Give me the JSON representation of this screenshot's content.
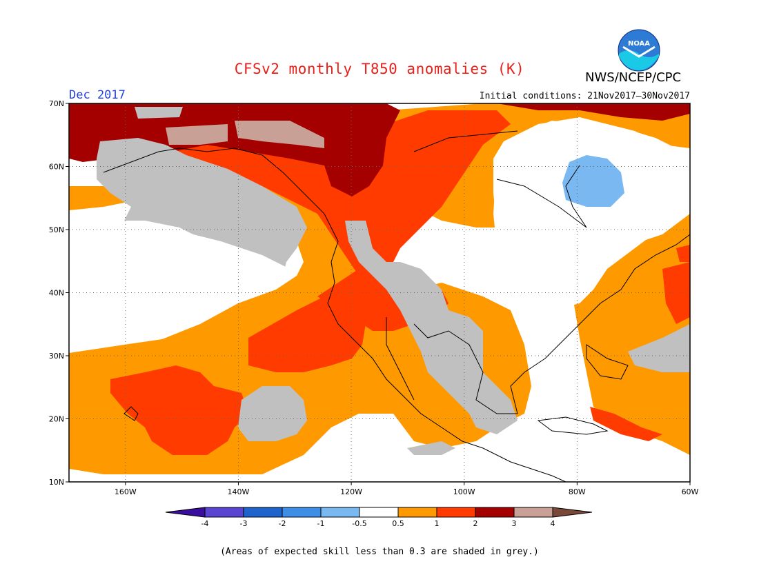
{
  "header": {
    "title": "CFSv2 monthly T850 anomalies (K)",
    "agency": "NWS/NCEP/CPC",
    "logo_text": "NOAA",
    "valid_month": "Dec 2017",
    "initial_conditions": "Initial conditions: 21Nov2017–30Nov2017"
  },
  "map": {
    "projection": "lat-lon",
    "lon_range": [
      -170,
      -60
    ],
    "lat_range": [
      10,
      70
    ],
    "lat_ticks": [
      "10N",
      "20N",
      "30N",
      "40N",
      "50N",
      "60N",
      "70N"
    ],
    "lat_tick_values": [
      10,
      20,
      30,
      40,
      50,
      60,
      70
    ],
    "lon_ticks": [
      "160W",
      "140W",
      "120W",
      "100W",
      "80W",
      "60W"
    ],
    "lon_tick_values": [
      -160,
      -140,
      -120,
      -100,
      -80,
      -60
    ],
    "grid": "dotted",
    "land_outline": "black"
  },
  "colorbar": {
    "ticks": [
      "-4",
      "-3",
      "-2",
      "-1",
      "-0.5",
      "0.5",
      "1",
      "2",
      "3",
      "4"
    ],
    "colors": [
      "#3a0fa0",
      "#5a45d2",
      "#1e64cc",
      "#3c8ee6",
      "#7ab8f2",
      "#ffffff",
      "#ff9900",
      "#ff3b00",
      "#a50000",
      "#c8a096",
      "#7a4838"
    ],
    "grey_color": "#c0c0c0"
  },
  "footnote": "(Areas of expected skill less than 0.3 are shaded in grey.)",
  "colors": {
    "title": "#e8201a",
    "valid_month": "#2244dd",
    "orange": "#ff9900",
    "red": "#ff3b00",
    "dark_red": "#a50000",
    "tan": "#c8a096",
    "grey": "#c0c0c0",
    "light_blue": "#7ab8f2"
  }
}
